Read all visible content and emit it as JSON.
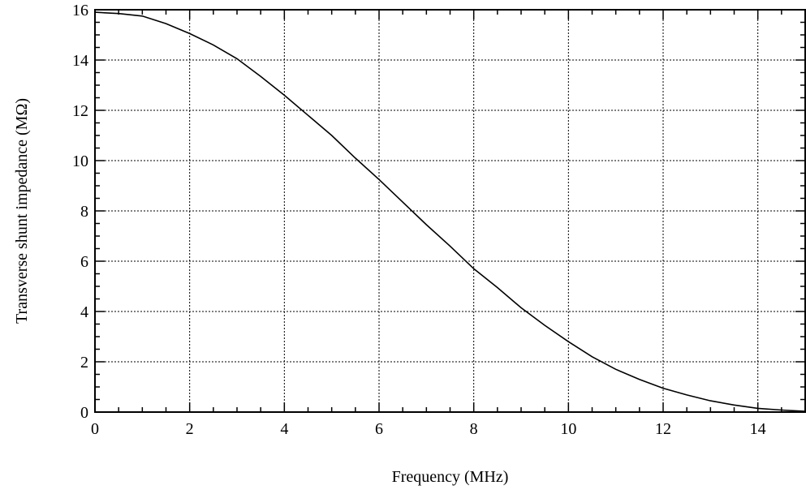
{
  "chart_data": {
    "type": "line",
    "xlabel": "Frequency  (MHz)",
    "ylabel": "Transverse shunt impedance  (MΩ)",
    "xlim": [
      0,
      15
    ],
    "ylim": [
      0,
      16
    ],
    "xticks": [
      0,
      2,
      4,
      6,
      8,
      10,
      12,
      14
    ],
    "yticks": [
      0,
      2,
      4,
      6,
      8,
      10,
      12,
      14,
      16
    ],
    "grid": true,
    "series": [
      {
        "x": [
          0,
          0.5,
          1,
          1.5,
          2,
          2.5,
          3,
          3.5,
          4,
          4.5,
          5,
          5.5,
          6,
          6.5,
          7,
          7.5,
          8,
          8.5,
          9,
          9.5,
          10,
          10.5,
          11,
          11.5,
          12,
          12.5,
          13,
          13.5,
          14,
          14.5,
          15
        ],
        "y": [
          15.9,
          15.85,
          15.75,
          15.45,
          15.05,
          14.6,
          14.05,
          13.35,
          12.6,
          11.8,
          11.0,
          10.1,
          9.25,
          8.35,
          7.45,
          6.6,
          5.7,
          4.95,
          4.15,
          3.45,
          2.8,
          2.2,
          1.7,
          1.3,
          0.95,
          0.68,
          0.45,
          0.28,
          0.15,
          0.08,
          0.03
        ]
      }
    ]
  }
}
